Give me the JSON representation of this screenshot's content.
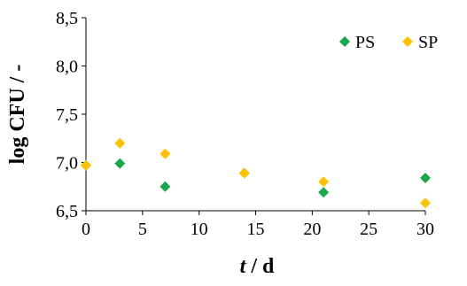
{
  "chart_data": {
    "type": "scatter",
    "title": "",
    "xlabel": {
      "italic": "t",
      "rest": " / d"
    },
    "ylabel": "log CFU / -",
    "xlim": [
      0,
      30
    ],
    "ylim": [
      6.5,
      8.5
    ],
    "x_ticks": [
      "0",
      "5",
      "10",
      "15",
      "20",
      "25",
      "30"
    ],
    "y_ticks": [
      "6,5",
      "7,0",
      "7,5",
      "8,0",
      "8,5"
    ],
    "grid": false,
    "legend_position": "top-right",
    "series": [
      {
        "name": "PS",
        "color": "#1aa64a",
        "marker": "diamond",
        "points": [
          {
            "x": 0,
            "y": 6.97
          },
          {
            "x": 3,
            "y": 6.99
          },
          {
            "x": 7,
            "y": 6.75
          },
          {
            "x": 14,
            "y": 6.89
          },
          {
            "x": 21,
            "y": 6.69
          },
          {
            "x": 30,
            "y": 6.84
          }
        ]
      },
      {
        "name": "SP",
        "color": "#ffc000",
        "marker": "diamond",
        "points": [
          {
            "x": 0,
            "y": 6.97
          },
          {
            "x": 3,
            "y": 7.2
          },
          {
            "x": 7,
            "y": 7.09
          },
          {
            "x": 14,
            "y": 6.89
          },
          {
            "x": 21,
            "y": 6.8
          },
          {
            "x": 30,
            "y": 6.58
          }
        ]
      }
    ]
  }
}
